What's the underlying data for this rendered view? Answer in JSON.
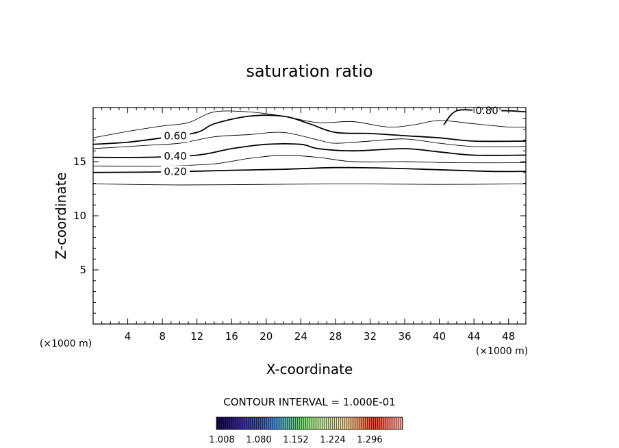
{
  "chart_data": {
    "type": "contour",
    "title": "saturation ratio",
    "xlabel": "X-coordinate",
    "ylabel": "Z-coordinate",
    "x_unit": "(×1000 m)",
    "y_unit": "(×1000 m)",
    "xlim": [
      0,
      50
    ],
    "ylim": [
      0,
      20
    ],
    "x_ticks": [
      4,
      8,
      12,
      16,
      20,
      24,
      28,
      32,
      36,
      40,
      44,
      48
    ],
    "y_ticks": [
      5,
      10,
      15
    ],
    "contour_interval_text": "CONTOUR INTERVAL = 1.000E-01",
    "contour_labels": [
      "0.20",
      "0.40",
      "0.60",
      "0.80"
    ],
    "contours": [
      {
        "level": 0.1,
        "x": [
          0,
          10,
          20,
          30,
          40,
          50
        ],
        "z": [
          12.95,
          12.85,
          12.9,
          12.95,
          12.9,
          12.95
        ]
      },
      {
        "level": 0.2,
        "x": [
          0,
          8,
          16,
          22,
          28,
          34,
          40,
          46,
          50
        ],
        "z": [
          14.0,
          14.05,
          14.2,
          14.3,
          14.45,
          14.4,
          14.25,
          14.1,
          14.1
        ]
      },
      {
        "level": 0.3,
        "x": [
          0,
          8,
          14,
          18,
          22,
          26,
          30,
          36,
          42,
          50
        ],
        "z": [
          14.6,
          14.6,
          14.8,
          15.3,
          15.6,
          15.4,
          15.0,
          15.0,
          14.9,
          14.9
        ]
      },
      {
        "level": 0.4,
        "x": [
          0,
          6,
          12,
          16,
          20,
          24,
          26,
          30,
          36,
          40,
          44,
          50
        ],
        "z": [
          15.4,
          15.4,
          15.6,
          16.2,
          16.6,
          16.6,
          16.2,
          16.0,
          16.2,
          15.9,
          15.6,
          15.6
        ]
      },
      {
        "level": 0.5,
        "x": [
          0,
          6,
          10,
          14,
          18,
          22,
          26,
          28,
          32,
          36,
          40,
          44,
          50
        ],
        "z": [
          16.2,
          16.5,
          16.7,
          17.3,
          17.5,
          17.7,
          17.0,
          16.7,
          16.9,
          17.1,
          16.7,
          16.4,
          16.4
        ]
      },
      {
        "level": 0.6,
        "x": [
          0,
          4,
          8,
          12,
          14,
          18,
          22,
          25,
          28,
          32,
          36,
          40,
          44,
          50
        ],
        "z": [
          16.6,
          16.8,
          17.2,
          17.7,
          18.5,
          19.2,
          19.2,
          18.5,
          17.7,
          17.6,
          17.4,
          17.2,
          16.9,
          16.9
        ]
      },
      {
        "level": 0.7,
        "x": [
          0,
          4,
          8,
          11,
          14,
          18,
          22,
          26,
          30,
          34,
          37,
          40,
          44,
          48,
          50
        ],
        "z": [
          17.2,
          17.8,
          18.3,
          18.6,
          19.6,
          19.6,
          19.2,
          18.6,
          18.7,
          18.2,
          18.4,
          18.8,
          18.5,
          18.2,
          18.2
        ]
      },
      {
        "level": 0.8,
        "x": [
          40.5,
          42,
          45,
          48,
          50
        ],
        "z": [
          18.4,
          19.7,
          19.7,
          19.7,
          19.6
        ]
      }
    ],
    "colorbar": {
      "tick_labels": [
        "1.008",
        "1.080",
        "1.152",
        "1.224",
        "1.296"
      ]
    }
  }
}
